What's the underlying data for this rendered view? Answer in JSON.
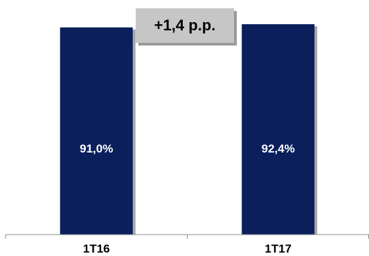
{
  "annotation": {
    "text": "+1,4 p.p."
  },
  "chart_data": {
    "type": "bar",
    "title": "",
    "xlabel": "",
    "ylabel": "",
    "categories": [
      "1T16",
      "1T17"
    ],
    "values": [
      91.0,
      92.4
    ],
    "data_labels": [
      "91,0%",
      "92,4%"
    ],
    "ylim": [
      0,
      100
    ],
    "grid": false,
    "legend": "none",
    "colors": {
      "bar": "#0b1f5c",
      "bar_shadow": "#a8a8a8",
      "axis": "#888888",
      "label": "#000000",
      "data_label": "#ffffff"
    }
  }
}
